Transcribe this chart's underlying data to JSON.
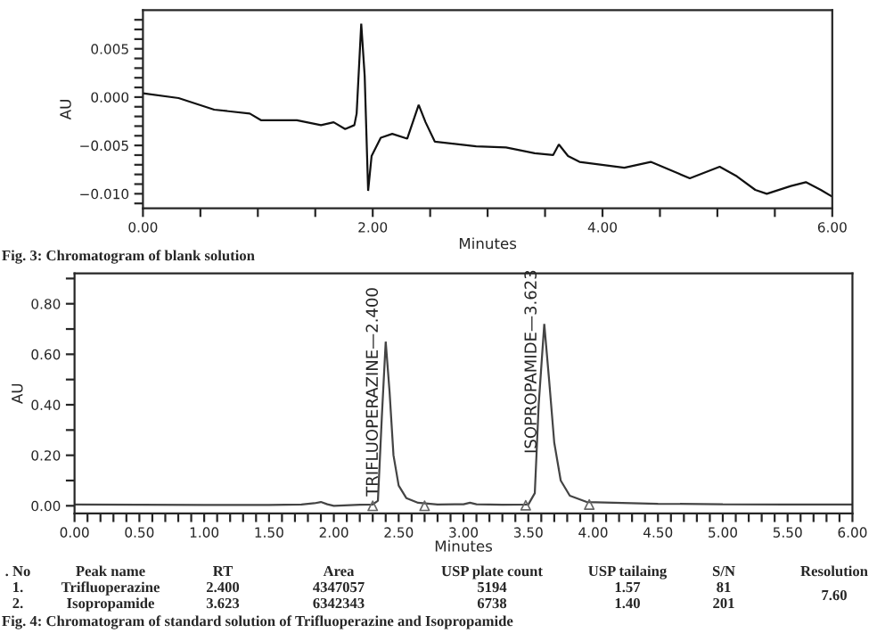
{
  "chart_data": [
    {
      "type": "line",
      "xlabel": "Minutes",
      "ylabel": "AU",
      "annotations": [
        "Fig. 3: Chromatogram of blank solution"
      ],
      "xlim": [
        0,
        6
      ],
      "ylim": [
        -0.0115,
        0.009
      ],
      "xticks": [
        {
          "value": 0,
          "label": "0.00"
        },
        {
          "value": 0.5,
          "label": null
        },
        {
          "value": 1,
          "label": null
        },
        {
          "value": 1.5,
          "label": null
        },
        {
          "value": 2,
          "label": "2.00"
        },
        {
          "value": 2.5,
          "label": null
        },
        {
          "value": 3,
          "label": null
        },
        {
          "value": 3.5,
          "label": null
        },
        {
          "value": 4,
          "label": "4.00"
        },
        {
          "value": 4.5,
          "label": null
        },
        {
          "value": 5,
          "label": null
        },
        {
          "value": 5.5,
          "label": null
        },
        {
          "value": 6,
          "label": "6.00"
        }
      ],
      "yticks": [
        {
          "value": -0.011,
          "label": null
        },
        {
          "value": -0.01,
          "label": "−0.010"
        },
        {
          "value": -0.009,
          "label": null
        },
        {
          "value": -0.008,
          "label": null
        },
        {
          "value": -0.007,
          "label": null
        },
        {
          "value": -0.006,
          "label": null
        },
        {
          "value": -0.005,
          "label": "−0.005"
        },
        {
          "value": -0.004,
          "label": null
        },
        {
          "value": -0.003,
          "label": null
        },
        {
          "value": -0.002,
          "label": null
        },
        {
          "value": -0.001,
          "label": null
        },
        {
          "value": 0,
          "label": "0.000"
        },
        {
          "value": 0.001,
          "label": null
        },
        {
          "value": 0.002,
          "label": null
        },
        {
          "value": 0.003,
          "label": null
        },
        {
          "value": 0.004,
          "label": null
        },
        {
          "value": 0.005,
          "label": "0.005"
        },
        {
          "value": 0.006,
          "label": null
        },
        {
          "value": 0.007,
          "label": null
        },
        {
          "value": 0.008,
          "label": null
        }
      ],
      "series": [
        {
          "color": "#111111",
          "x": [
            0,
            0.31,
            0.62,
            0.93,
            1.03,
            1.34,
            1.55,
            1.66,
            1.76,
            1.84,
            1.86,
            1.9,
            1.93,
            1.96,
            1.99,
            2.07,
            2.17,
            2.3,
            2.4,
            2.46,
            2.54,
            2.9,
            3.16,
            3.41,
            3.57,
            3.62,
            3.7,
            3.8,
            4.19,
            4.42,
            4.66,
            4.76,
            5.02,
            5.17,
            5.33,
            5.43,
            5.64,
            5.77,
            5.9,
            6.0
          ],
          "values": [
            0.0004,
            -0.0001,
            -0.0013,
            -0.0017,
            -0.0024,
            -0.0024,
            -0.0029,
            -0.0026,
            -0.0033,
            -0.0029,
            -0.0017,
            0.0076,
            0.0022,
            -0.0097,
            -0.0061,
            -0.0042,
            -0.0038,
            -0.0043,
            -0.0008,
            -0.0026,
            -0.0046,
            -0.0051,
            -0.0052,
            -0.0058,
            -0.006,
            -0.0049,
            -0.0061,
            -0.0067,
            -0.0073,
            -0.0067,
            -0.0079,
            -0.0084,
            -0.0072,
            -0.0082,
            -0.0096,
            -0.01,
            -0.0092,
            -0.0088,
            -0.0096,
            -0.0103
          ]
        }
      ]
    },
    {
      "type": "line",
      "xlabel": "Minutes",
      "ylabel": "AU",
      "annotations": [
        {
          "text": "TRIFLUOPERAZINE—2.400",
          "x": 2.4,
          "y": 0.65
        },
        {
          "text": "ISOPROPAMIDE—3.623",
          "x": 3.623,
          "y": 0.72
        },
        ". No",
        "Peak name",
        "RT",
        "Area",
        "USP plate count",
        "USP tailaing",
        "S/N",
        "Resolution",
        "1.",
        "Trifluoperazine",
        "2.400",
        "4347057",
        "5194",
        "1.57",
        "81",
        "7.60",
        "2.",
        "Isopropamide",
        "3.623",
        "6342343",
        "6738",
        "1.40",
        "201",
        "Fig. 4: Chromatogram of standard solution of Trifluoperazine and Isopropamide"
      ],
      "xlim": [
        0,
        6
      ],
      "ylim": [
        -0.03,
        0.92
      ],
      "xticks": [
        {
          "value": 0,
          "label": "0.00"
        },
        {
          "value": 0.1,
          "label": null
        },
        {
          "value": 0.2,
          "label": null
        },
        {
          "value": 0.3,
          "label": null
        },
        {
          "value": 0.4,
          "label": null
        },
        {
          "value": 0.5,
          "label": "0.50"
        },
        {
          "value": 0.6,
          "label": null
        },
        {
          "value": 0.7,
          "label": null
        },
        {
          "value": 0.8,
          "label": null
        },
        {
          "value": 0.9,
          "label": null
        },
        {
          "value": 1,
          "label": "1.00"
        },
        {
          "value": 1.1,
          "label": null
        },
        {
          "value": 1.2,
          "label": null
        },
        {
          "value": 1.3,
          "label": null
        },
        {
          "value": 1.4,
          "label": null
        },
        {
          "value": 1.5,
          "label": "1.50"
        },
        {
          "value": 1.6,
          "label": null
        },
        {
          "value": 1.7,
          "label": null
        },
        {
          "value": 1.8,
          "label": null
        },
        {
          "value": 1.9,
          "label": null
        },
        {
          "value": 2,
          "label": "2.00"
        },
        {
          "value": 2.1,
          "label": null
        },
        {
          "value": 2.2,
          "label": null
        },
        {
          "value": 2.3,
          "label": null
        },
        {
          "value": 2.4,
          "label": null
        },
        {
          "value": 2.5,
          "label": "2.50"
        },
        {
          "value": 2.6,
          "label": null
        },
        {
          "value": 2.7,
          "label": null
        },
        {
          "value": 2.8,
          "label": null
        },
        {
          "value": 2.9,
          "label": null
        },
        {
          "value": 3,
          "label": "3.00"
        },
        {
          "value": 3.1,
          "label": null
        },
        {
          "value": 3.2,
          "label": null
        },
        {
          "value": 3.3,
          "label": null
        },
        {
          "value": 3.4,
          "label": null
        },
        {
          "value": 3.5,
          "label": "3.50"
        },
        {
          "value": 3.6,
          "label": null
        },
        {
          "value": 3.7,
          "label": null
        },
        {
          "value": 3.8,
          "label": null
        },
        {
          "value": 3.9,
          "label": null
        },
        {
          "value": 4,
          "label": "4.00"
        },
        {
          "value": 4.1,
          "label": null
        },
        {
          "value": 4.2,
          "label": null
        },
        {
          "value": 4.3,
          "label": null
        },
        {
          "value": 4.4,
          "label": null
        },
        {
          "value": 4.5,
          "label": "4.50"
        },
        {
          "value": 4.6,
          "label": null
        },
        {
          "value": 4.7,
          "label": null
        },
        {
          "value": 4.8,
          "label": null
        },
        {
          "value": 4.9,
          "label": null
        },
        {
          "value": 5,
          "label": "5.00"
        },
        {
          "value": 5.1,
          "label": null
        },
        {
          "value": 5.2,
          "label": null
        },
        {
          "value": 5.3,
          "label": null
        },
        {
          "value": 5.4,
          "label": null
        },
        {
          "value": 5.5,
          "label": "5.50"
        },
        {
          "value": 5.6,
          "label": null
        },
        {
          "value": 5.7,
          "label": null
        },
        {
          "value": 5.8,
          "label": null
        },
        {
          "value": 5.9,
          "label": null
        },
        {
          "value": 6,
          "label": "6.00"
        }
      ],
      "yticks": [
        {
          "value": 0,
          "label": "0.00"
        },
        {
          "value": 0.1,
          "label": null
        },
        {
          "value": 0.2,
          "label": "0.20"
        },
        {
          "value": 0.3,
          "label": null
        },
        {
          "value": 0.4,
          "label": "0.40"
        },
        {
          "value": 0.5,
          "label": null
        },
        {
          "value": 0.6,
          "label": "0.60"
        },
        {
          "value": 0.7,
          "label": null
        },
        {
          "value": 0.8,
          "label": "0.80"
        },
        {
          "value": 0.9,
          "label": null
        }
      ],
      "series": [
        {
          "color": "#444444",
          "x": [
            0,
            0.5,
            1.0,
            1.5,
            1.75,
            1.85,
            1.9,
            1.95,
            2.0,
            2.2,
            2.3,
            2.34,
            2.37,
            2.4,
            2.43,
            2.46,
            2.5,
            2.56,
            2.65,
            2.8,
            3.0,
            3.05,
            3.1,
            3.3,
            3.5,
            3.55,
            3.58,
            3.623,
            3.66,
            3.7,
            3.75,
            3.82,
            3.95,
            4.5,
            5.0,
            5.5,
            6.0
          ],
          "values": [
            0.005,
            0.004,
            0.003,
            0.003,
            0.005,
            0.01,
            0.015,
            0.006,
            0.0,
            0.004,
            0.005,
            0.02,
            0.35,
            0.65,
            0.45,
            0.2,
            0.08,
            0.03,
            0.012,
            0.005,
            0.006,
            0.012,
            0.006,
            0.004,
            0.005,
            0.05,
            0.4,
            0.72,
            0.5,
            0.25,
            0.1,
            0.04,
            0.015,
            0.008,
            0.006,
            0.005,
            0.005
          ]
        },
        {
          "type": "scatter",
          "marker": "triangle",
          "color": "#666666",
          "x": [
            2.3,
            2.7,
            3.48,
            3.97
          ],
          "values": [
            0.0,
            0.0,
            0.002,
            0.005
          ]
        }
      ]
    }
  ]
}
